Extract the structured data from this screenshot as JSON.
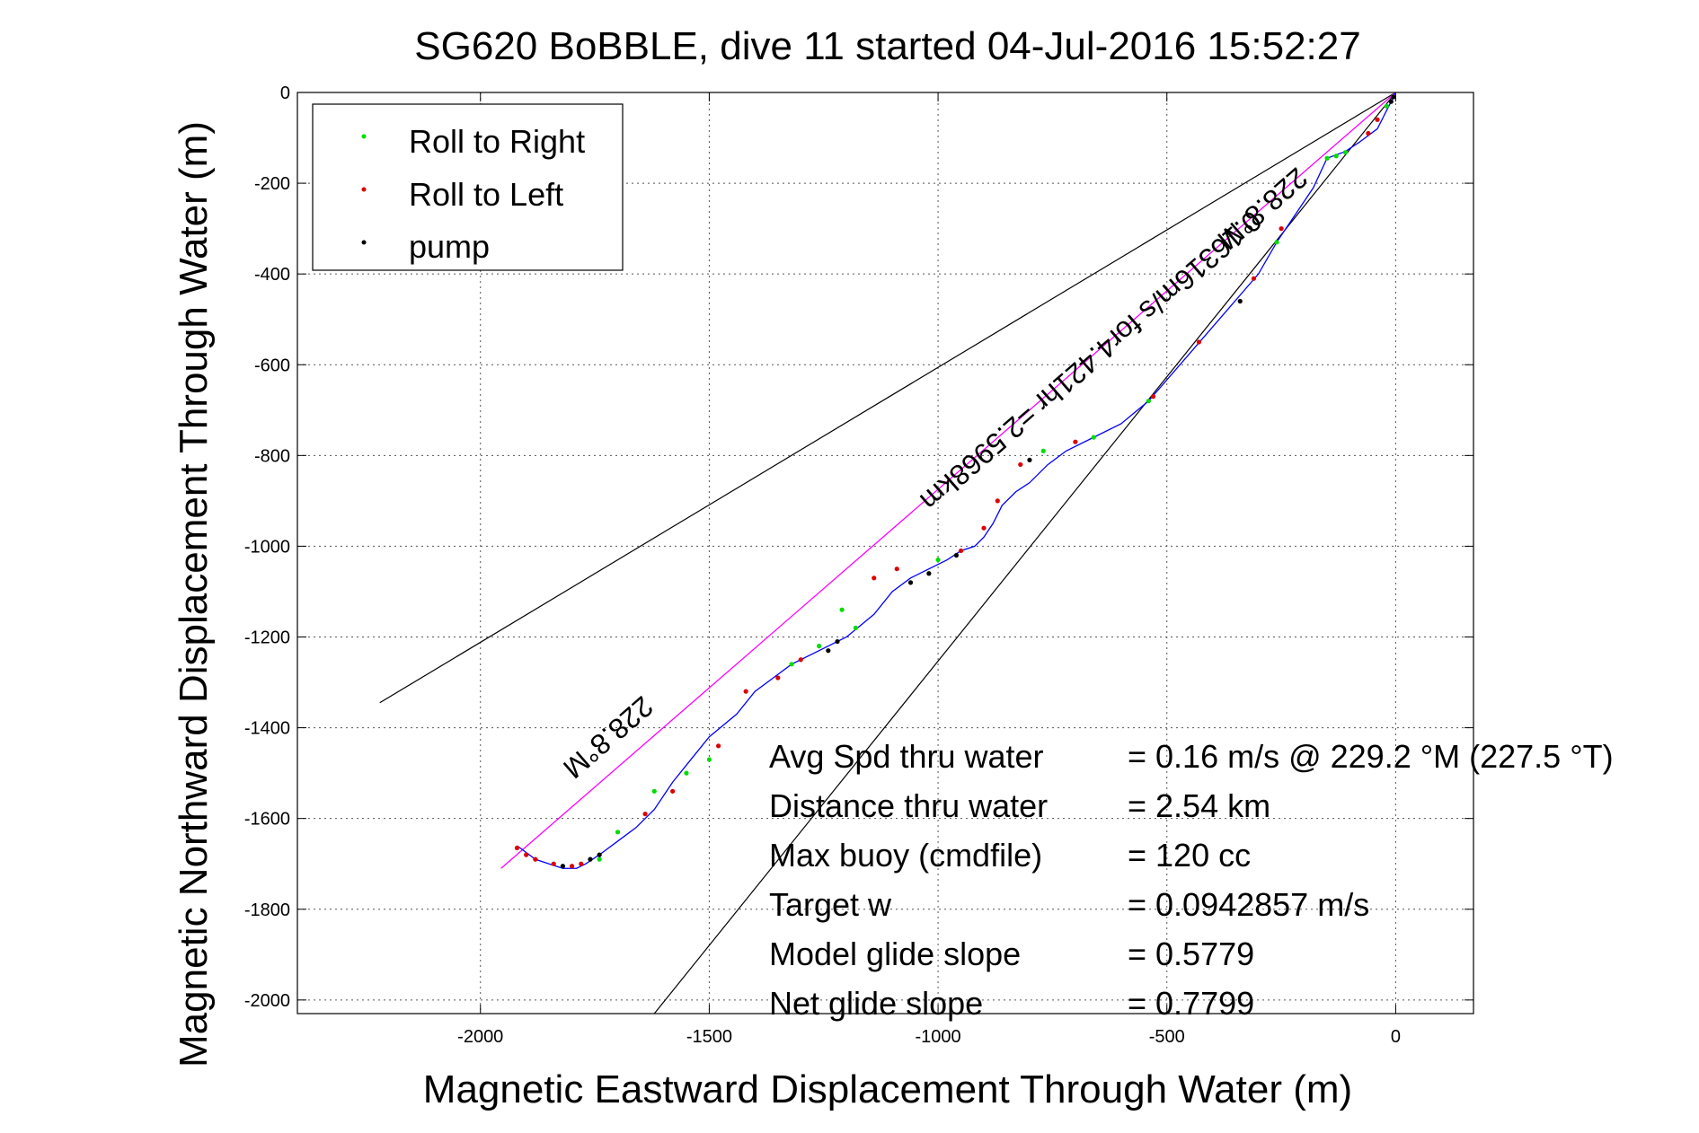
{
  "chart_data": {
    "type": "line",
    "title": "SG620 BoBBLE, dive 11 started 04-Jul-2016 15:52:27",
    "xlabel": "Magnetic Eastward Displacement Through Water (m)",
    "ylabel": "Magnetic Northward Displacement Through Water (m)",
    "xlim": [
      -2400,
      170
    ],
    "ylim": [
      -2030,
      0
    ],
    "xticks": [
      -2000,
      -1500,
      -1000,
      -500,
      0
    ],
    "yticks": [
      0,
      -200,
      -400,
      -600,
      -800,
      -1000,
      -1200,
      -1400,
      -1600,
      -1800,
      -2000
    ],
    "grid": true,
    "legend": {
      "placement": "top-left",
      "entries": [
        {
          "name": "Roll to Right",
          "color": "#00dd00"
        },
        {
          "name": "Roll to Left",
          "color": "#dd0000"
        },
        {
          "name": "pump",
          "color": "#000000"
        }
      ]
    },
    "colors": {
      "track": "#0000ff",
      "heading_line": "#ff00ff",
      "cone_lines": "#000000"
    },
    "track": {
      "x": [
        0,
        -20,
        -40,
        -80,
        -110,
        -150,
        -180,
        -220,
        -260,
        -300,
        -360,
        -420,
        -480,
        -540,
        -600,
        -660,
        -720,
        -760,
        -800,
        -830,
        -860,
        -880,
        -900,
        -920,
        -950,
        -980,
        -1020,
        -1060,
        -1100,
        -1140,
        -1200,
        -1260,
        -1320,
        -1360,
        -1400,
        -1440,
        -1500,
        -1540,
        -1580,
        -1620,
        -1660,
        -1700,
        -1740,
        -1770,
        -1790,
        -1820,
        -1850,
        -1880,
        -1920
      ],
      "y": [
        0,
        -40,
        -80,
        -110,
        -130,
        -145,
        -210,
        -270,
        -330,
        -400,
        -470,
        -540,
        -610,
        -680,
        -730,
        -760,
        -790,
        -820,
        -860,
        -880,
        -910,
        -950,
        -980,
        -1000,
        -1010,
        -1030,
        -1050,
        -1070,
        -1100,
        -1150,
        -1200,
        -1230,
        -1260,
        -1290,
        -1320,
        -1370,
        -1420,
        -1470,
        -1520,
        -1580,
        -1620,
        -1650,
        -1680,
        -1700,
        -1710,
        -1710,
        -1700,
        -1690,
        -1660
      ]
    },
    "roll_right_x": [
      -150,
      -130,
      -110,
      -20,
      -260,
      -540,
      -660,
      -770,
      -1000,
      -1180,
      -1210,
      -1260,
      -1320,
      -1500,
      -1550,
      -1620,
      -1700,
      -1740
    ],
    "roll_right_y": [
      -145,
      -140,
      -132,
      -30,
      -330,
      -680,
      -760,
      -790,
      -1030,
      -1180,
      -1140,
      -1220,
      -1260,
      -1470,
      -1500,
      -1540,
      -1630,
      -1690
    ],
    "roll_left_x": [
      -40,
      -60,
      -250,
      -310,
      -430,
      -530,
      -700,
      -820,
      -870,
      -900,
      -950,
      -1090,
      -1140,
      -1300,
      -1350,
      -1420,
      -1480,
      -1580,
      -1640,
      -1780,
      -1800,
      -1840,
      -1880,
      -1900,
      -1920
    ],
    "roll_left_y": [
      -60,
      -90,
      -300,
      -410,
      -550,
      -670,
      -770,
      -820,
      -900,
      -960,
      -1010,
      -1050,
      -1070,
      -1250,
      -1290,
      -1320,
      -1440,
      -1540,
      -1590,
      -1700,
      -1705,
      -1700,
      -1690,
      -1680,
      -1665
    ],
    "pump_x": [
      -5,
      -10,
      -340,
      -800,
      -960,
      -1020,
      -1060,
      -1220,
      -1240,
      -1740,
      -1760,
      -1820
    ],
    "pump_y": [
      -10,
      -20,
      -460,
      -810,
      -1020,
      -1060,
      -1080,
      -1210,
      -1230,
      -1680,
      -1690,
      -1705
    ],
    "heading_line": {
      "x": [
        0,
        -1955
      ],
      "y": [
        0,
        -1710
      ]
    },
    "cone_lines": [
      {
        "x": [
          0,
          -2220
        ],
        "y": [
          0,
          -1345
        ]
      },
      {
        "x": [
          0,
          -1620
        ],
        "y": [
          0,
          -2030
        ]
      }
    ],
    "annotations": {
      "heading_upper": "228.8°M",
      "heading_lower": "228.8°M",
      "distance": "0.16316m/s for4.421hr =2.5968km"
    },
    "stats": [
      {
        "label": "Avg Spd thru water",
        "value": "=  0.16 m/s @ 229.2 °M (227.5 °T)"
      },
      {
        "label": "Distance thru water",
        "value": "=  2.54 km"
      },
      {
        "label": "Max buoy (cmdfile)",
        "value": "= 120 cc"
      },
      {
        "label": "Target w",
        "value": "= 0.0942857 m/s"
      },
      {
        "label": "Model glide slope",
        "value": "= 0.5779"
      },
      {
        "label": "Net glide slope",
        "value": "= 0.7799"
      }
    ]
  }
}
